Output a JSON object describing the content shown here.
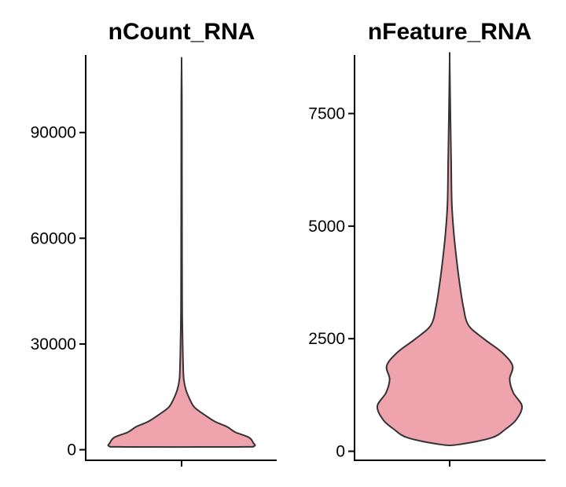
{
  "chart_data": [
    {
      "type": "violin",
      "title": "nCount_RNA",
      "xlabel": "",
      "ylabel": "",
      "ylim": [
        -3000,
        112000
      ],
      "y_ticks": [
        0,
        30000,
        60000,
        90000
      ],
      "y_tick_labels": [
        "0",
        "30000",
        "60000",
        "90000"
      ],
      "fill_color": "#EFA3AC",
      "outline_color": "#333333",
      "grid": false,
      "violin_profile": {
        "y": [
          800,
          1000,
          2000,
          3500,
          5000,
          6500,
          8000,
          10000,
          12000,
          14000,
          17000,
          20000,
          25000,
          30000,
          40000,
          60000,
          80000,
          100000,
          110000
        ],
        "relative_width": [
          0.78,
          1.0,
          0.99,
          0.93,
          0.74,
          0.63,
          0.46,
          0.31,
          0.18,
          0.12,
          0.06,
          0.03,
          0.02,
          0.015,
          0.008,
          0.006,
          0.005,
          0.004,
          0.0
        ]
      }
    },
    {
      "type": "violin",
      "title": "nFeature_RNA",
      "xlabel": "",
      "ylabel": "",
      "ylim": [
        -200,
        8800
      ],
      "y_ticks": [
        0,
        2500,
        5000,
        7500
      ],
      "y_tick_labels": [
        "0",
        "2500",
        "5000",
        "7500"
      ],
      "fill_color": "#EFA3AC",
      "outline_color": "#333333",
      "grid": false,
      "violin_profile": {
        "y": [
          150,
          300,
          500,
          700,
          1000,
          1300,
          1600,
          1900,
          2200,
          2500,
          2800,
          3200,
          3700,
          4200,
          4800,
          5500,
          6500,
          7500,
          8700
        ],
        "relative_width": [
          0.12,
          0.58,
          0.78,
          0.92,
          1.0,
          0.88,
          0.83,
          0.87,
          0.72,
          0.47,
          0.26,
          0.19,
          0.14,
          0.1,
          0.06,
          0.03,
          0.02,
          0.01,
          0.0
        ]
      }
    }
  ]
}
